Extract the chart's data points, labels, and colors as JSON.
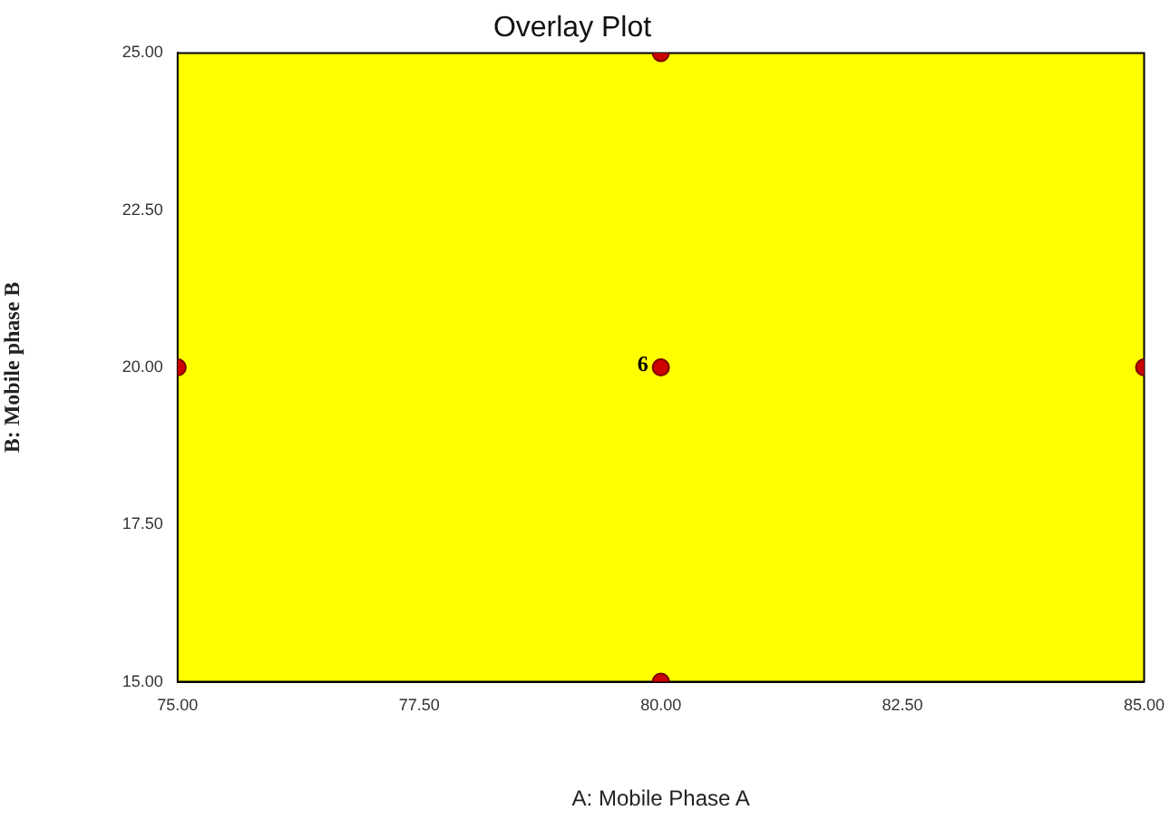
{
  "chart_data": {
    "type": "scatter",
    "title": "Overlay Plot",
    "xlabel": "A: Mobile Phase A",
    "ylabel": "B: Mobile phase B",
    "x": [
      75,
      85,
      80,
      80,
      80
    ],
    "series": [
      {
        "color": "#cc0000",
        "values": [
          20,
          20,
          15,
          25,
          20
        ]
      }
    ],
    "xlim": [
      75,
      85
    ],
    "xticks": [
      {
        "value": 75,
        "label": "75.00"
      },
      {
        "value": 77.5,
        "label": "77.50"
      },
      {
        "value": 80,
        "label": "80.00"
      },
      {
        "value": 82.5,
        "label": "82.50"
      },
      {
        "value": 85,
        "label": "85.00"
      }
    ],
    "ylim": [
      15,
      25
    ],
    "yticks": [
      {
        "value": 15,
        "label": "15.00"
      },
      {
        "value": 17.5,
        "label": "17.50"
      },
      {
        "value": 20,
        "label": "20.00"
      },
      {
        "value": 22.5,
        "label": "22.50"
      },
      {
        "value": 25,
        "label": "25.00"
      }
    ],
    "bands": [
      {
        "axis": "y",
        "from": 15,
        "to": 25,
        "color": "#ffff00"
      }
    ],
    "annotations": [
      {
        "text": "6",
        "x": 80,
        "y": 20
      }
    ],
    "grid": false,
    "legend": false,
    "marker": "circle"
  }
}
